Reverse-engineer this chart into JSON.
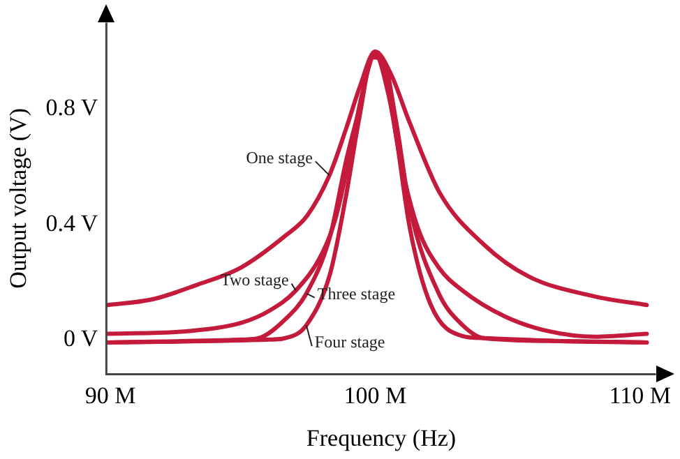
{
  "chart_data": {
    "type": "line",
    "xlabel": "Frequency (Hz)",
    "ylabel": "Output voltage (V)",
    "xlim": [
      89850000,
      110600000
    ],
    "ylim": [
      -0.12,
      1.1
    ],
    "xticks": [
      {
        "value": 90000000,
        "label": "90 M"
      },
      {
        "value": 100000000,
        "label": "100 M"
      },
      {
        "value": 110000000,
        "label": "110 M"
      }
    ],
    "yticks": [
      {
        "value": 0,
        "label": "0 V"
      },
      {
        "value": 0.4,
        "label": "0.4 V"
      },
      {
        "value": 0.8,
        "label": "0.8 V"
      }
    ],
    "grid": false,
    "legend": false,
    "marker": "none",
    "line_style": "solid",
    "series": [
      {
        "name": "One stage",
        "color": "#c41a3b",
        "x": [
          89900000,
          91600000,
          93270000,
          94930000,
          96600000,
          97430000,
          98270000,
          98930000,
          99430000,
          100000000,
          100600000,
          101270000,
          102430000,
          104100000,
          105770000,
          108270000,
          110250000
        ],
        "values": [
          0.12,
          0.14,
          0.19,
          0.25,
          0.36,
          0.43,
          0.57,
          0.74,
          0.88,
          1.0,
          0.92,
          0.76,
          0.51,
          0.33,
          0.22,
          0.15,
          0.12
        ]
      },
      {
        "name": "Two stage",
        "color": "#c41a3b",
        "x": [
          89900000,
          93000000,
          95000000,
          96000000,
          97000000,
          98000000,
          98500000,
          99000000,
          99500000,
          100000000,
          100500000,
          101000000,
          101600000,
          102400000,
          103300000,
          104900000,
          106500000,
          108300000,
          110250000
        ],
        "values": [
          0.02,
          0.03,
          0.06,
          0.1,
          0.17,
          0.3,
          0.42,
          0.62,
          0.85,
          0.99,
          0.85,
          0.6,
          0.39,
          0.25,
          0.17,
          0.08,
          0.03,
          0.01,
          0.02
        ]
      },
      {
        "name": "Three stage",
        "color": "#c41a3b",
        "x": [
          89900000,
          95000000,
          95600000,
          96600000,
          97400000,
          98300000,
          98900000,
          99400000,
          99900000,
          100300000,
          100800000,
          101300000,
          102400000,
          103300000,
          104100000,
          107000000,
          110250000
        ],
        "values": [
          -0.01,
          0,
          0.005,
          0.07,
          0.16,
          0.36,
          0.62,
          0.8,
          0.98,
          0.97,
          0.75,
          0.46,
          0.16,
          0.05,
          0.005,
          -0.005,
          -0.01
        ]
      },
      {
        "name": "Four stage",
        "color": "#c41a3b",
        "x": [
          89900000,
          96000000,
          96600000,
          97400000,
          98300000,
          98900000,
          99400000,
          99900000,
          100300000,
          100800000,
          101300000,
          102100000,
          103300000,
          104100000,
          107000000,
          110250000
        ],
        "values": [
          -0.01,
          0,
          0.005,
          0.05,
          0.23,
          0.5,
          0.77,
          0.98,
          0.97,
          0.7,
          0.39,
          0.12,
          0.012,
          0.005,
          -0.005,
          -0.01
        ]
      }
    ]
  }
}
